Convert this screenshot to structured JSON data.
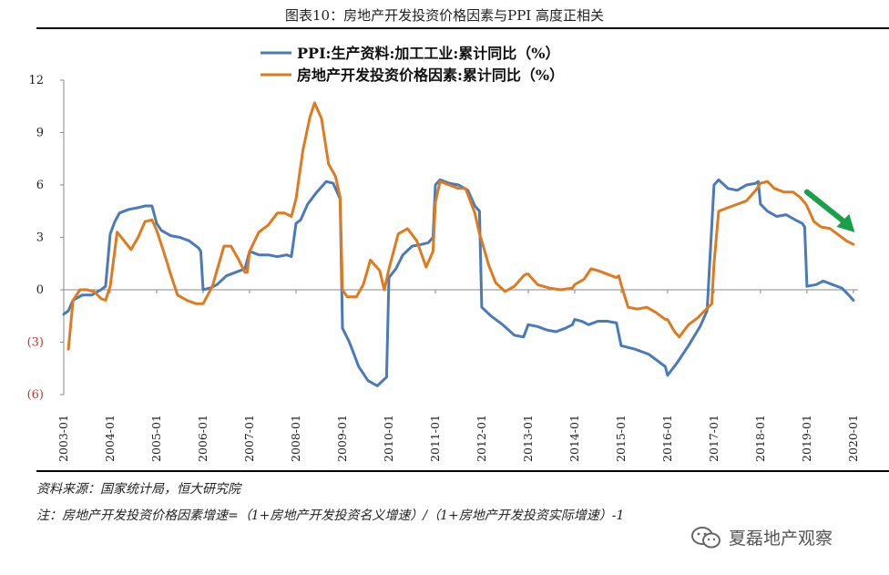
{
  "title": "图表10：房地产开发投资价格因素与PPI 高度正相关",
  "source": "资料来源：国家统计局，恒大研究院",
  "note": "注：房地产开发投资价格因素增速=（1+房地产开发投资名义增速）/（1+房地产开发投资实际增速）-1",
  "watermark": "夏磊地产观察",
  "colors": {
    "ppi": "#4a7ab8",
    "property": "#e07a1f",
    "arrow": "#1aa04a",
    "neg_tick": "#c0392b"
  },
  "chart_data": {
    "type": "line",
    "xlabel": "",
    "ylabel": "",
    "legend_position": "top-center",
    "grid": false,
    "ylim": [
      -6,
      12
    ],
    "yticks": [
      12,
      9,
      6,
      3,
      0,
      -3,
      -6
    ],
    "ytick_labels": [
      "12",
      "9",
      "6",
      "3",
      "0",
      "(3)",
      "(6)"
    ],
    "xlim": [
      2003.0,
      2020.1
    ],
    "xtick_labels": [
      "2003-01",
      "2004-01",
      "2005-01",
      "2006-01",
      "2007-01",
      "2008-01",
      "2009-01",
      "2010-01",
      "2011-01",
      "2012-01",
      "2013-01",
      "2014-01",
      "2015-01",
      "2016-01",
      "2017-01",
      "2018-01",
      "2019-01",
      "2020-01"
    ],
    "annotation": "downward-green-arrow",
    "series": [
      {
        "name": "PPI:生产资料:加工工业:累计同比（%）",
        "color": "#4a7ab8",
        "points": [
          [
            2003.0,
            -1.4
          ],
          [
            2003.1,
            -1.2
          ],
          [
            2003.2,
            -0.6
          ],
          [
            2003.4,
            -0.3
          ],
          [
            2003.6,
            -0.3
          ],
          [
            2003.8,
            0.0
          ],
          [
            2003.9,
            0.2
          ],
          [
            2004.0,
            3.2
          ],
          [
            2004.1,
            3.9
          ],
          [
            2004.2,
            4.4
          ],
          [
            2004.4,
            4.6
          ],
          [
            2004.6,
            4.7
          ],
          [
            2004.75,
            4.8
          ],
          [
            2004.9,
            4.8
          ],
          [
            2005.0,
            3.8
          ],
          [
            2005.1,
            3.4
          ],
          [
            2005.3,
            3.1
          ],
          [
            2005.5,
            3.0
          ],
          [
            2005.7,
            2.8
          ],
          [
            2005.9,
            2.4
          ],
          [
            2005.95,
            2.2
          ],
          [
            2006.0,
            0.0
          ],
          [
            2006.15,
            0.1
          ],
          [
            2006.3,
            0.3
          ],
          [
            2006.5,
            0.8
          ],
          [
            2006.7,
            1.0
          ],
          [
            2006.9,
            1.2
          ],
          [
            2007.0,
            2.2
          ],
          [
            2007.2,
            2.0
          ],
          [
            2007.4,
            2.0
          ],
          [
            2007.6,
            1.9
          ],
          [
            2007.8,
            2.0
          ],
          [
            2007.9,
            1.9
          ],
          [
            2008.0,
            3.8
          ],
          [
            2008.1,
            4.0
          ],
          [
            2008.25,
            4.9
          ],
          [
            2008.45,
            5.6
          ],
          [
            2008.65,
            6.2
          ],
          [
            2008.8,
            6.1
          ],
          [
            2008.95,
            5.2
          ],
          [
            2009.0,
            -2.2
          ],
          [
            2009.15,
            -3.0
          ],
          [
            2009.35,
            -4.4
          ],
          [
            2009.55,
            -5.2
          ],
          [
            2009.75,
            -5.5
          ],
          [
            2009.95,
            -5.0
          ],
          [
            2010.0,
            0.7
          ],
          [
            2010.15,
            1.2
          ],
          [
            2010.3,
            2.0
          ],
          [
            2010.5,
            2.5
          ],
          [
            2010.7,
            2.6
          ],
          [
            2010.85,
            2.7
          ],
          [
            2010.95,
            3.0
          ],
          [
            2011.0,
            6.0
          ],
          [
            2011.1,
            6.3
          ],
          [
            2011.3,
            6.1
          ],
          [
            2011.5,
            6.0
          ],
          [
            2011.7,
            5.7
          ],
          [
            2011.85,
            4.8
          ],
          [
            2011.95,
            4.5
          ],
          [
            2012.0,
            -1.0
          ],
          [
            2012.2,
            -1.5
          ],
          [
            2012.45,
            -2.0
          ],
          [
            2012.7,
            -2.6
          ],
          [
            2012.9,
            -2.7
          ],
          [
            2013.0,
            -2.0
          ],
          [
            2013.2,
            -2.1
          ],
          [
            2013.4,
            -2.3
          ],
          [
            2013.6,
            -2.4
          ],
          [
            2013.8,
            -2.2
          ],
          [
            2013.95,
            -2.0
          ],
          [
            2014.0,
            -1.7
          ],
          [
            2014.15,
            -1.8
          ],
          [
            2014.3,
            -2.0
          ],
          [
            2014.5,
            -1.8
          ],
          [
            2014.7,
            -1.8
          ],
          [
            2014.9,
            -1.9
          ],
          [
            2015.0,
            -3.2
          ],
          [
            2015.3,
            -3.4
          ],
          [
            2015.6,
            -3.7
          ],
          [
            2015.85,
            -4.2
          ],
          [
            2015.95,
            -4.4
          ],
          [
            2016.0,
            -4.9
          ],
          [
            2016.2,
            -4.2
          ],
          [
            2016.45,
            -3.2
          ],
          [
            2016.7,
            -2.1
          ],
          [
            2016.85,
            -1.2
          ],
          [
            2017.0,
            6.0
          ],
          [
            2017.1,
            6.3
          ],
          [
            2017.3,
            5.8
          ],
          [
            2017.5,
            5.7
          ],
          [
            2017.7,
            6.0
          ],
          [
            2017.9,
            6.1
          ],
          [
            2017.95,
            6.2
          ],
          [
            2018.0,
            4.9
          ],
          [
            2018.15,
            4.5
          ],
          [
            2018.35,
            4.2
          ],
          [
            2018.55,
            4.3
          ],
          [
            2018.75,
            4.0
          ],
          [
            2018.9,
            3.8
          ],
          [
            2018.95,
            3.6
          ],
          [
            2019.0,
            0.2
          ],
          [
            2019.2,
            0.3
          ],
          [
            2019.35,
            0.5
          ],
          [
            2019.55,
            0.3
          ],
          [
            2019.75,
            0.1
          ],
          [
            2019.9,
            -0.3
          ],
          [
            2020.0,
            -0.6
          ]
        ]
      },
      {
        "name": "房地产开发投资价格因素:累计同比（%）",
        "color": "#e07a1f",
        "points": [
          [
            2003.1,
            -3.4
          ],
          [
            2003.2,
            -0.6
          ],
          [
            2003.35,
            0.0
          ],
          [
            2003.5,
            0.0
          ],
          [
            2003.65,
            -0.1
          ],
          [
            2003.8,
            -0.5
          ],
          [
            2003.9,
            -0.6
          ],
          [
            2004.0,
            0.2
          ],
          [
            2004.15,
            3.3
          ],
          [
            2004.3,
            2.8
          ],
          [
            2004.45,
            2.3
          ],
          [
            2004.6,
            3.0
          ],
          [
            2004.75,
            3.9
          ],
          [
            2004.9,
            4.0
          ],
          [
            2005.0,
            3.4
          ],
          [
            2005.15,
            2.2
          ],
          [
            2005.3,
            0.9
          ],
          [
            2005.45,
            -0.3
          ],
          [
            2005.65,
            -0.6
          ],
          [
            2005.85,
            -0.8
          ],
          [
            2005.95,
            -0.8
          ],
          [
            2006.0,
            -0.8
          ],
          [
            2006.2,
            0.2
          ],
          [
            2006.45,
            2.5
          ],
          [
            2006.6,
            2.5
          ],
          [
            2006.75,
            1.8
          ],
          [
            2006.9,
            1.0
          ],
          [
            2006.95,
            1.0
          ],
          [
            2007.0,
            2.2
          ],
          [
            2007.2,
            3.3
          ],
          [
            2007.4,
            3.7
          ],
          [
            2007.6,
            4.4
          ],
          [
            2007.75,
            4.4
          ],
          [
            2007.9,
            4.2
          ],
          [
            2008.0,
            5.2
          ],
          [
            2008.15,
            8.0
          ],
          [
            2008.3,
            9.9
          ],
          [
            2008.4,
            10.7
          ],
          [
            2008.55,
            9.8
          ],
          [
            2008.7,
            7.2
          ],
          [
            2008.85,
            6.5
          ],
          [
            2008.95,
            5.3
          ],
          [
            2009.0,
            0.0
          ],
          [
            2009.1,
            -0.4
          ],
          [
            2009.3,
            -0.4
          ],
          [
            2009.45,
            0.3
          ],
          [
            2009.6,
            1.7
          ],
          [
            2009.8,
            1.1
          ],
          [
            2009.9,
            0.0
          ],
          [
            2010.0,
            1.2
          ],
          [
            2010.2,
            3.2
          ],
          [
            2010.4,
            3.5
          ],
          [
            2010.6,
            2.8
          ],
          [
            2010.8,
            1.3
          ],
          [
            2010.95,
            2.2
          ],
          [
            2011.0,
            5.0
          ],
          [
            2011.1,
            6.2
          ],
          [
            2011.3,
            6.0
          ],
          [
            2011.5,
            5.8
          ],
          [
            2011.65,
            5.8
          ],
          [
            2011.85,
            4.4
          ],
          [
            2011.95,
            3.2
          ],
          [
            2012.0,
            2.8
          ],
          [
            2012.15,
            1.4
          ],
          [
            2012.3,
            0.4
          ],
          [
            2012.5,
            -0.1
          ],
          [
            2012.7,
            0.2
          ],
          [
            2012.9,
            0.8
          ],
          [
            2012.95,
            0.9
          ],
          [
            2013.0,
            0.9
          ],
          [
            2013.2,
            0.3
          ],
          [
            2013.45,
            0.1
          ],
          [
            2013.7,
            0.0
          ],
          [
            2013.95,
            0.1
          ],
          [
            2014.0,
            0.3
          ],
          [
            2014.2,
            0.6
          ],
          [
            2014.35,
            1.2
          ],
          [
            2014.5,
            1.1
          ],
          [
            2014.7,
            0.9
          ],
          [
            2014.9,
            0.7
          ],
          [
            2014.95,
            0.8
          ],
          [
            2015.0,
            0.3
          ],
          [
            2015.15,
            -1.0
          ],
          [
            2015.35,
            -1.1
          ],
          [
            2015.55,
            -1.0
          ],
          [
            2015.75,
            -1.3
          ],
          [
            2015.95,
            -1.7
          ],
          [
            2016.0,
            -1.7
          ],
          [
            2016.15,
            -2.4
          ],
          [
            2016.25,
            -2.7
          ],
          [
            2016.45,
            -2.0
          ],
          [
            2016.65,
            -1.6
          ],
          [
            2016.8,
            -1.2
          ],
          [
            2016.95,
            -0.8
          ],
          [
            2017.0,
            1.5
          ],
          [
            2017.1,
            4.5
          ],
          [
            2017.3,
            4.7
          ],
          [
            2017.5,
            4.9
          ],
          [
            2017.7,
            5.1
          ],
          [
            2017.9,
            5.7
          ],
          [
            2018.0,
            6.1
          ],
          [
            2018.15,
            6.2
          ],
          [
            2018.3,
            5.8
          ],
          [
            2018.5,
            5.6
          ],
          [
            2018.7,
            5.6
          ],
          [
            2018.85,
            5.3
          ],
          [
            2018.95,
            5.0
          ],
          [
            2019.0,
            4.8
          ],
          [
            2019.15,
            3.9
          ],
          [
            2019.3,
            3.6
          ],
          [
            2019.5,
            3.5
          ],
          [
            2019.7,
            3.1
          ],
          [
            2019.85,
            2.8
          ],
          [
            2020.0,
            2.6
          ]
        ]
      }
    ]
  }
}
